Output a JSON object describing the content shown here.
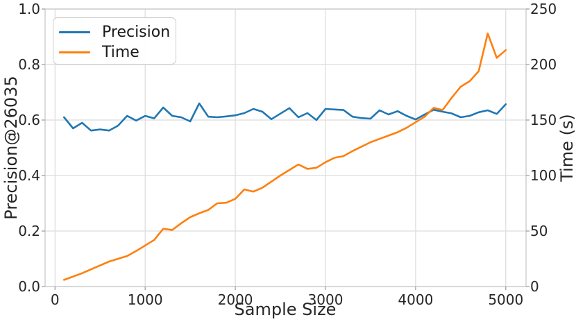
{
  "chart_data": {
    "type": "line",
    "title": "",
    "xlabel": "Sample Size",
    "ylabel_left": "Precision@26035",
    "ylabel_right": "Time (s)",
    "grid": true,
    "legend_position": "upper-left",
    "xlim": [
      -110,
      5225
    ],
    "ylim_left": [
      0.0,
      1.0
    ],
    "ylim_right": [
      0,
      250
    ],
    "x_ticks": [
      "0",
      "1000",
      "2000",
      "3000",
      "4000",
      "5000"
    ],
    "y_ticks_left": [
      "0.0",
      "0.2",
      "0.4",
      "0.6",
      "0.8",
      "1.0"
    ],
    "y_ticks_right": [
      "0",
      "50",
      "100",
      "150",
      "200",
      "250"
    ],
    "x": [
      100,
      200,
      300,
      400,
      500,
      600,
      700,
      800,
      900,
      1000,
      1100,
      1200,
      1300,
      1400,
      1500,
      1600,
      1700,
      1800,
      1900,
      2000,
      2100,
      2200,
      2300,
      2400,
      2500,
      2600,
      2700,
      2800,
      2900,
      3000,
      3100,
      3200,
      3300,
      3400,
      3500,
      3600,
      3700,
      3800,
      3900,
      4000,
      4100,
      4200,
      4300,
      4400,
      4500,
      4600,
      4700,
      4800,
      4900,
      5000
    ],
    "series": [
      {
        "name": "Precision",
        "axis": "left",
        "color": "#1f77b4",
        "values": [
          0.61,
          0.57,
          0.59,
          0.562,
          0.566,
          0.562,
          0.58,
          0.615,
          0.598,
          0.615,
          0.606,
          0.645,
          0.615,
          0.61,
          0.595,
          0.66,
          0.612,
          0.61,
          0.613,
          0.617,
          0.625,
          0.64,
          0.63,
          0.603,
          0.623,
          0.643,
          0.61,
          0.625,
          0.6,
          0.64,
          0.638,
          0.636,
          0.612,
          0.607,
          0.605,
          0.635,
          0.62,
          0.632,
          0.615,
          0.602,
          0.62,
          0.637,
          0.63,
          0.624,
          0.61,
          0.615,
          0.628,
          0.635,
          0.622,
          0.657
        ]
      },
      {
        "name": "Time",
        "axis": "right",
        "color": "#ff7f0e",
        "values": [
          6,
          9,
          12,
          15.5,
          19,
          22.5,
          25,
          27.5,
          32,
          37,
          42,
          52,
          51,
          57,
          62.5,
          66,
          69,
          75,
          75.5,
          79,
          87.5,
          85.5,
          89,
          94.5,
          100,
          105,
          110,
          106,
          107,
          112,
          116,
          117.5,
          122,
          126,
          130,
          133,
          136,
          139,
          143,
          148,
          153,
          161,
          159,
          170,
          180,
          185,
          194,
          228,
          206,
          213
        ]
      }
    ],
    "colors": {
      "grid": "#dcdcdc",
      "spine": "#c8c8c8",
      "tick_mark": "#999999",
      "text": "#262626"
    }
  }
}
